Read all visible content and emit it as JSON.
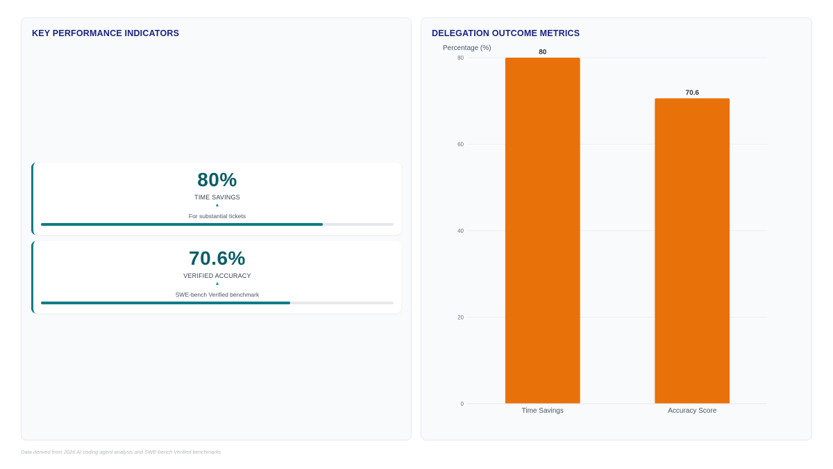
{
  "left_panel": {
    "title": "KEY PERFORMANCE INDICATORS",
    "kpis": [
      {
        "value": "80%",
        "label": "TIME SAVINGS",
        "trend": "▲",
        "subtext": "For substantial tickets",
        "progress": 0.8
      },
      {
        "value": "70.6%",
        "label": "VERIFIED ACCURACY",
        "trend": "▲",
        "subtext": "SWE-bench Verified benchmark",
        "progress": 0.706
      }
    ]
  },
  "right_panel": {
    "title": "DELEGATION OUTCOME METRICS"
  },
  "chart_data": {
    "type": "bar",
    "categories": [
      "Time Savings",
      "Accuracy Score"
    ],
    "values": [
      80,
      70.6
    ],
    "value_labels": [
      "80",
      "70.6"
    ],
    "ylabel": "Percentage (%)",
    "xlabel": "",
    "ylim": [
      0,
      80
    ],
    "yticks": [
      0,
      20,
      40,
      60,
      80
    ],
    "grid": true,
    "bar_color": "#e8710a"
  },
  "footnote": "Data derived from 2026 AI coding agent analysis and SWE-bench Verified benchmarks",
  "colors": {
    "title": "#1a237e",
    "accent_teal": "#0f7c86",
    "bar_orange": "#e8710a"
  }
}
